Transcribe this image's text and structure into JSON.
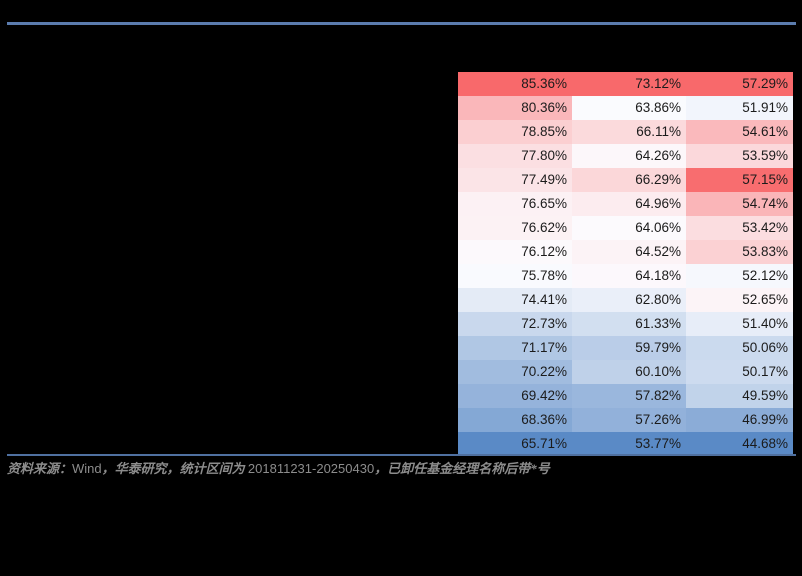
{
  "colors": {
    "background": "#000000",
    "top_rule": "#5B7CAE",
    "footer_rule": "#4F70A0",
    "cell_text": "#1B1B1B",
    "footer_text": "#8C8C8C"
  },
  "chart_data": {
    "type": "heatmap",
    "unit": "%",
    "value_format": "two_decimal_percent",
    "values": [
      [
        85.36,
        73.12,
        57.29
      ],
      [
        80.36,
        63.86,
        51.91
      ],
      [
        78.85,
        66.11,
        54.61
      ],
      [
        77.8,
        64.26,
        53.59
      ],
      [
        77.49,
        66.29,
        57.15
      ],
      [
        76.65,
        64.96,
        54.74
      ],
      [
        76.62,
        64.06,
        53.42
      ],
      [
        76.12,
        64.52,
        53.83
      ],
      [
        75.78,
        64.18,
        52.12
      ],
      [
        74.41,
        62.8,
        52.65
      ],
      [
        72.73,
        61.33,
        51.4
      ],
      [
        71.17,
        59.79,
        50.06
      ],
      [
        70.22,
        60.1,
        50.17
      ],
      [
        69.42,
        57.82,
        49.59
      ],
      [
        68.36,
        57.26,
        46.99
      ],
      [
        65.71,
        53.77,
        44.68
      ]
    ],
    "cell_colors": [
      [
        "#F8696B",
        "#F8696B",
        "#F8696B"
      ],
      [
        "#FAB7BA",
        "#FAFBFE",
        "#F2F5FC"
      ],
      [
        "#FBCFD1",
        "#FBDADC",
        "#FAB9BC"
      ],
      [
        "#FBDFE2",
        "#FCF7FA",
        "#FBD8DB"
      ],
      [
        "#FBE4E7",
        "#FBD7D9",
        "#F86D6F"
      ],
      [
        "#FCF1F4",
        "#FCECEF",
        "#FAB5B8"
      ],
      [
        "#FCF2F4",
        "#FCFAFD",
        "#FBDDE0"
      ],
      [
        "#FCF9FC",
        "#FCF3F6",
        "#FBD1D3"
      ],
      [
        "#F9FAFE",
        "#FCF8FC",
        "#F6F8FD"
      ],
      [
        "#E4EBF6",
        "#EAEFF9",
        "#FCF4F7"
      ],
      [
        "#C9D8ED",
        "#D2DFF0",
        "#E7EDF8"
      ],
      [
        "#B0C7E4",
        "#BACDE8",
        "#CBDAEE"
      ],
      [
        "#A1BCDF",
        "#BFD1E9",
        "#CDDBEF"
      ],
      [
        "#95B3DB",
        "#9AB7DD",
        "#C1D3EA"
      ],
      [
        "#84A8D5",
        "#92B1DA",
        "#8BACD7"
      ],
      [
        "#5A8AC6",
        "#5A8AC6",
        "#5A8AC6"
      ]
    ],
    "color_scale": {
      "min_color": "#5A8AC6",
      "mid_color": "#FCFCFF",
      "max_color": "#F8696B",
      "applied": "per-column, midpoint at median"
    },
    "legend": "none",
    "grid": "off",
    "visible_headers": "none (cropped out of view)"
  },
  "footer": {
    "source_parts": [
      {
        "text": "资料来源：",
        "style": "kai"
      },
      {
        "text": "Wind",
        "style": "sans"
      },
      {
        "text": "，华泰研究，统计区间为 ",
        "style": "kai"
      },
      {
        "text": "201811231-20250430",
        "style": "sans"
      },
      {
        "text": "，已卸任基金经理名称后带*号",
        "style": "kai"
      }
    ]
  }
}
